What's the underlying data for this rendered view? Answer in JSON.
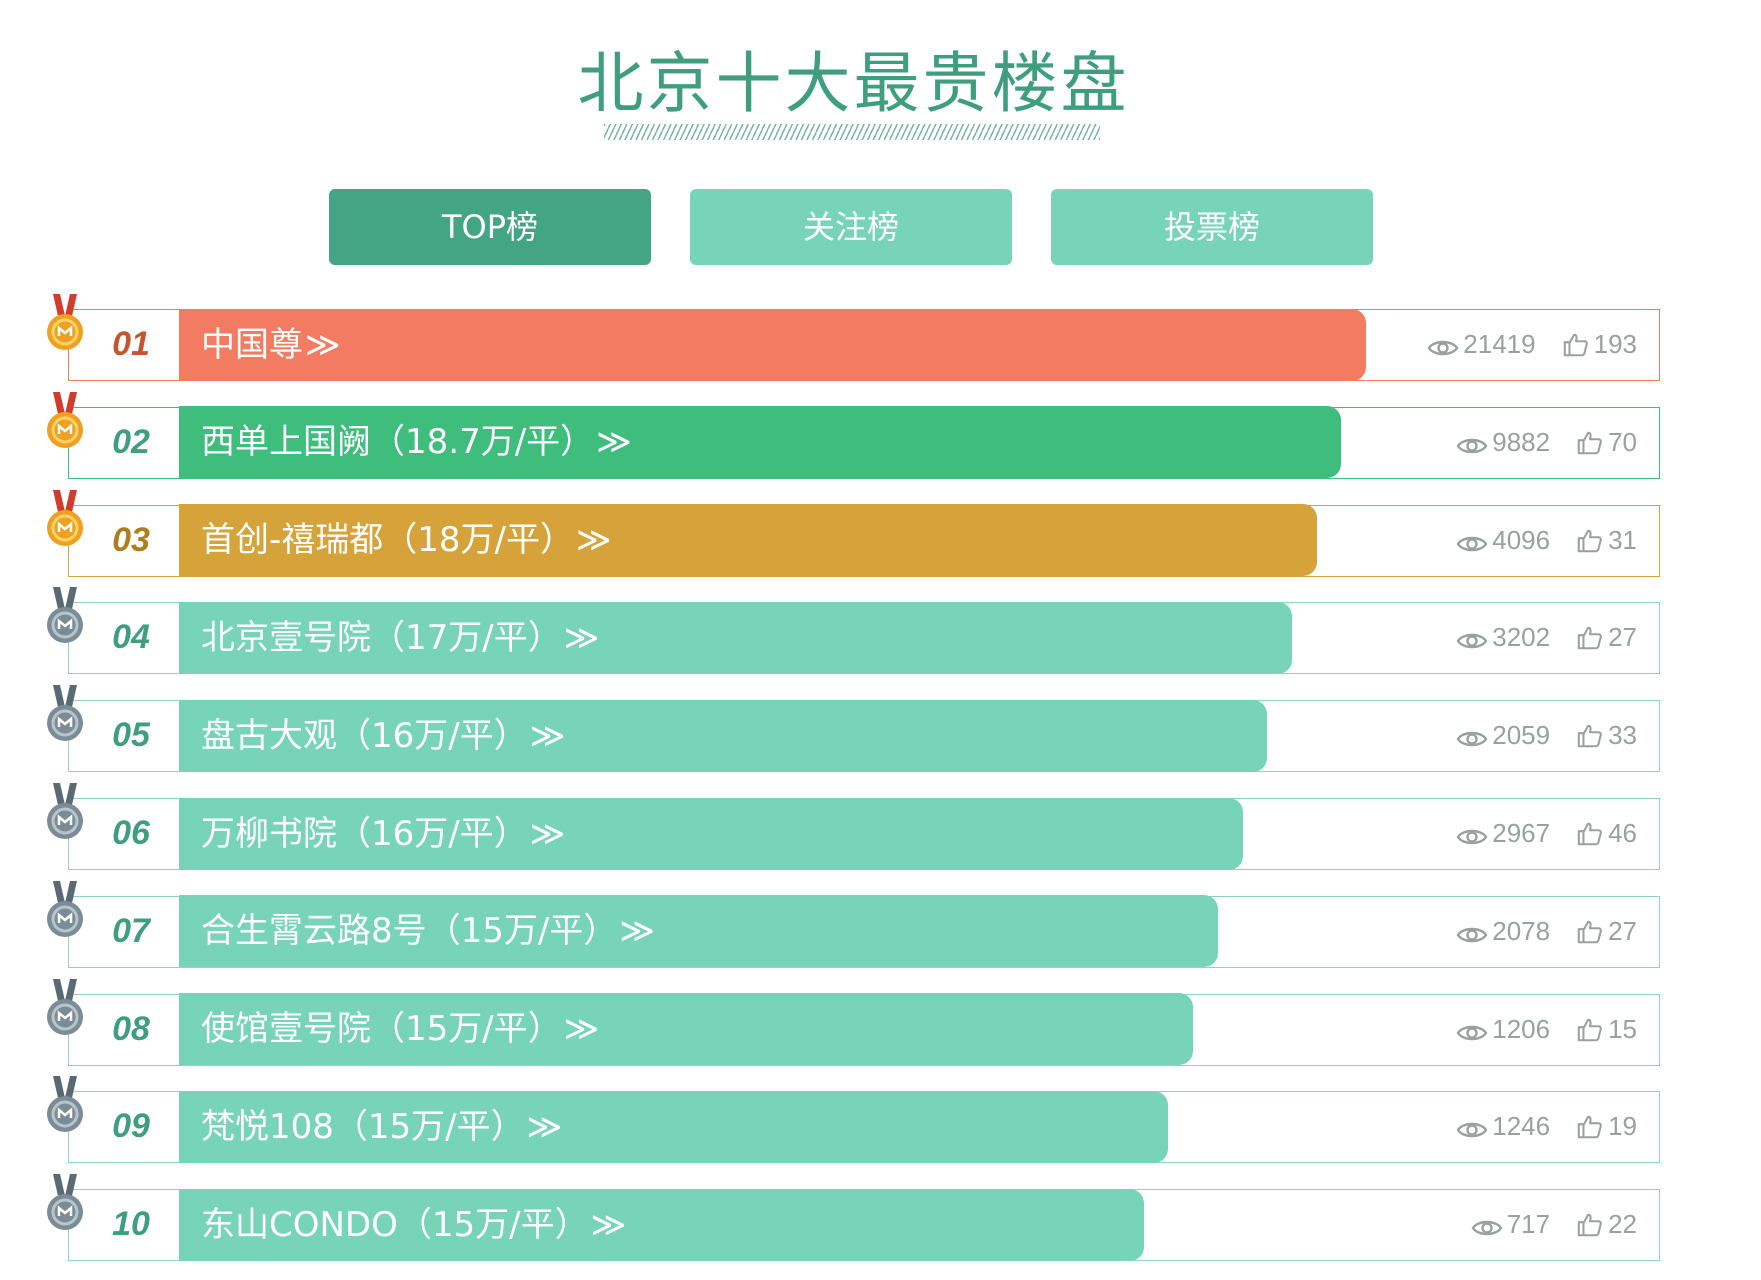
{
  "title": "北京十大最贵楼盘",
  "tabs": [
    {
      "label": "TOP榜",
      "active": true
    },
    {
      "label": "关注榜",
      "active": false
    },
    {
      "label": "投票榜",
      "active": false
    }
  ],
  "colors": {
    "first": "#f27b62",
    "second": "#3fbd7c",
    "third": "#d6a23a",
    "default": "#77d4b7",
    "gold_medal": "#f0a020",
    "silver_medal": "#7c8c96"
  },
  "rankings": [
    {
      "rank": "01",
      "name": "中国尊",
      "price": "",
      "views": "21419",
      "likes": "193",
      "level": 1.0,
      "medal": "gold"
    },
    {
      "rank": "02",
      "name": "西单上国阙",
      "price": "（18.7万/平）",
      "views": "9882",
      "likes": "70",
      "level": 0.9,
      "medal": "gold"
    },
    {
      "rank": "03",
      "name": "首创-禧瑞都",
      "price": "（18万/平）",
      "views": "4096",
      "likes": "31",
      "level": 0.8,
      "medal": "gold"
    },
    {
      "rank": "04",
      "name": "北京壹号院",
      "price": "（17万/平）",
      "views": "3202",
      "likes": "27",
      "level": 0.7,
      "medal": "silver"
    },
    {
      "rank": "05",
      "name": "盘古大观",
      "price": "（16万/平）",
      "views": "2059",
      "likes": "33",
      "level": 0.6,
      "medal": "silver"
    },
    {
      "rank": "06",
      "name": "万柳书院",
      "price": "（16万/平）",
      "views": "2967",
      "likes": "46",
      "level": 0.5,
      "medal": "silver"
    },
    {
      "rank": "07",
      "name": "合生霄云路8号",
      "price": "（15万/平）",
      "views": "2078",
      "likes": "27",
      "level": 0.4,
      "medal": "silver"
    },
    {
      "rank": "08",
      "name": "使馆壹号院",
      "price": "（15万/平）",
      "views": "1206",
      "likes": "15",
      "level": 0.3,
      "medal": "silver"
    },
    {
      "rank": "09",
      "name": "梵悦108",
      "price": "（15万/平）",
      "views": "1246",
      "likes": "19",
      "level": 0.2,
      "medal": "silver"
    },
    {
      "rank": "10",
      "name": "东山CONDO",
      "price": "（15万/平）",
      "views": "717",
      "likes": "22",
      "level": 0.1,
      "medal": "silver"
    }
  ],
  "arrow_glyph": "≫",
  "icons": {
    "views": "eye-icon",
    "likes": "thumbs-up-icon",
    "rank": "medal-icon"
  }
}
